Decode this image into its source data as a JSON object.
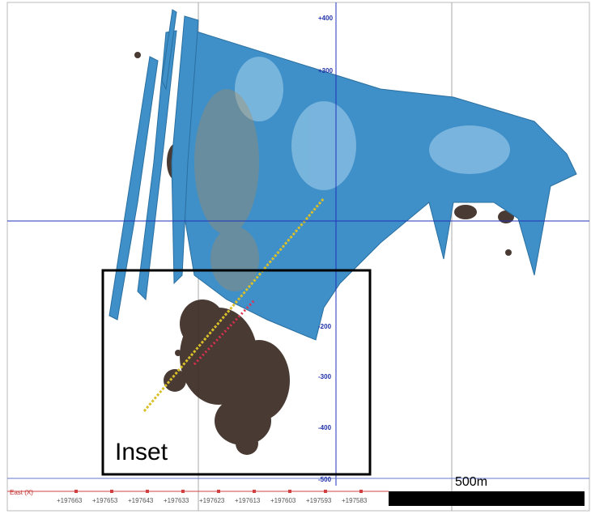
{
  "view": {
    "vertical_axis_labels": [
      "+400",
      "+300",
      "-200",
      "-300",
      "-400",
      "-500"
    ],
    "east_axis_title": "East (X)",
    "east_axis_labels": [
      "+197663",
      "+197653",
      "+197643",
      "+197633",
      "+197623",
      "+197613",
      "+197603",
      "+197593",
      "+197583"
    ],
    "inset_label": "Inset",
    "scale_bar_label": "500m"
  }
}
